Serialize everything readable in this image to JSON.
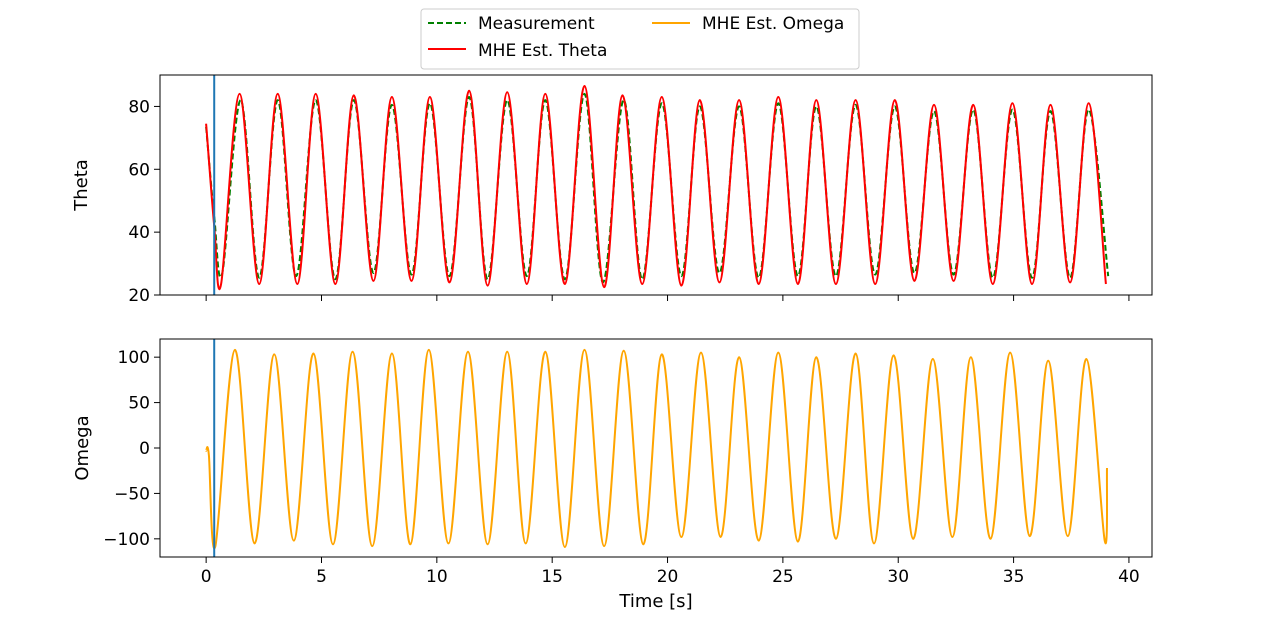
{
  "legend": {
    "placement": "top-center",
    "entries": [
      {
        "label": "Measurement",
        "color": "#008000",
        "style": "dashed"
      },
      {
        "label": "MHE Est. Theta",
        "color": "#ff0000",
        "style": "solid"
      },
      {
        "label": "MHE Est. Omega",
        "color": "#ffa500",
        "style": "solid"
      }
    ]
  },
  "chart_data": [
    {
      "type": "line",
      "title": "",
      "xlabel": "",
      "ylabel": "Theta",
      "xlim": [
        -2,
        41
      ],
      "ylim": [
        20,
        90
      ],
      "xticks": [
        0,
        5,
        10,
        15,
        20,
        25,
        30,
        35,
        40
      ],
      "yticks": [
        20,
        40,
        60,
        80
      ],
      "ytick_labels": [
        "20",
        "40",
        "60",
        "80"
      ],
      "show_xtick_labels": false,
      "grid": false,
      "vline": {
        "x": 0.35,
        "color": "#1f77b4"
      },
      "series": [
        {
          "name": "Measurement",
          "color": "#008000",
          "style": "dashed",
          "points": [
            [
              0.0,
              73.5
            ],
            [
              0.35,
              45
            ],
            [
              0.7,
              27
            ],
            [
              1.5,
              82
            ],
            [
              2.3,
              25.5
            ],
            [
              3.1,
              82
            ],
            [
              3.9,
              26
            ],
            [
              4.75,
              82
            ],
            [
              5.6,
              25
            ],
            [
              6.4,
              82
            ],
            [
              7.25,
              27
            ],
            [
              8.05,
              80.5
            ],
            [
              8.9,
              26.5
            ],
            [
              9.7,
              81
            ],
            [
              10.55,
              26
            ],
            [
              11.4,
              83
            ],
            [
              12.2,
              25
            ],
            [
              13.05,
              82
            ],
            [
              13.9,
              26
            ],
            [
              14.7,
              82
            ],
            [
              15.55,
              25
            ],
            [
              16.4,
              84
            ],
            [
              17.2,
              24
            ],
            [
              18.1,
              82
            ],
            [
              18.9,
              25
            ],
            [
              19.75,
              81
            ],
            [
              20.6,
              26
            ],
            [
              21.4,
              80
            ],
            [
              22.25,
              27
            ],
            [
              23.1,
              80
            ],
            [
              23.95,
              25.5
            ],
            [
              24.8,
              81
            ],
            [
              25.65,
              26
            ],
            [
              26.45,
              80
            ],
            [
              27.3,
              26
            ],
            [
              28.15,
              80.5
            ],
            [
              29.0,
              26.5
            ],
            [
              29.85,
              80
            ],
            [
              30.7,
              27
            ],
            [
              31.55,
              78.5
            ],
            [
              32.4,
              26.5
            ],
            [
              33.25,
              79
            ],
            [
              34.1,
              25.5
            ],
            [
              34.95,
              79
            ],
            [
              35.8,
              25.5
            ],
            [
              36.6,
              78.5
            ],
            [
              37.45,
              25.5
            ],
            [
              38.25,
              79
            ],
            [
              39.1,
              26
            ]
          ]
        },
        {
          "name": "MHE Est. Theta",
          "color": "#ff0000",
          "style": "solid",
          "points": [
            [
              0.0,
              74.5
            ],
            [
              0.35,
              42
            ],
            [
              0.65,
              23.5
            ],
            [
              1.45,
              84
            ],
            [
              2.3,
              23.5
            ],
            [
              3.1,
              84
            ],
            [
              3.95,
              23.5
            ],
            [
              4.75,
              84
            ],
            [
              5.6,
              23.5
            ],
            [
              6.4,
              83.5
            ],
            [
              7.25,
              24.5
            ],
            [
              8.05,
              83
            ],
            [
              8.9,
              24.5
            ],
            [
              9.7,
              83
            ],
            [
              10.55,
              24
            ],
            [
              11.4,
              85
            ],
            [
              12.2,
              23
            ],
            [
              13.05,
              84.5
            ],
            [
              13.9,
              23.5
            ],
            [
              14.7,
              84
            ],
            [
              15.55,
              23.5
            ],
            [
              16.4,
              86.5
            ],
            [
              17.25,
              22.5
            ],
            [
              18.05,
              83.5
            ],
            [
              18.9,
              23.5
            ],
            [
              19.75,
              83
            ],
            [
              20.6,
              23
            ],
            [
              21.4,
              82
            ],
            [
              22.25,
              24
            ],
            [
              23.1,
              82
            ],
            [
              23.95,
              23.5
            ],
            [
              24.8,
              83
            ],
            [
              25.65,
              23.5
            ],
            [
              26.45,
              82
            ],
            [
              27.3,
              23.5
            ],
            [
              28.15,
              82
            ],
            [
              29.0,
              23.5
            ],
            [
              29.85,
              82
            ],
            [
              30.7,
              24.5
            ],
            [
              31.55,
              80.5
            ],
            [
              32.4,
              24.5
            ],
            [
              33.25,
              80.5
            ],
            [
              34.1,
              23.5
            ],
            [
              34.95,
              81
            ],
            [
              35.8,
              23.5
            ],
            [
              36.6,
              80.5
            ],
            [
              37.45,
              24
            ],
            [
              38.25,
              81
            ],
            [
              39.0,
              23.5
            ]
          ]
        }
      ]
    },
    {
      "type": "line",
      "title": "",
      "xlabel": "Time [s]",
      "ylabel": "Omega",
      "xlim": [
        -2,
        41
      ],
      "ylim": [
        -120,
        120
      ],
      "xticks": [
        0,
        5,
        10,
        15,
        20,
        25,
        30,
        35,
        40
      ],
      "xtick_labels": [
        "0",
        "5",
        "10",
        "15",
        "20",
        "25",
        "30",
        "35",
        "40"
      ],
      "yticks": [
        -100,
        -50,
        0,
        50,
        100
      ],
      "ytick_labels": [
        "−100",
        "−50",
        "0",
        "50",
        "100"
      ],
      "grid": false,
      "vline": {
        "x": 0.35,
        "color": "#1f77b4"
      },
      "series": [
        {
          "name": "MHE Est. Omega",
          "color": "#ffa500",
          "style": "solid",
          "points": [
            [
              0.0,
              -3
            ],
            [
              0.12,
              -8
            ],
            [
              0.4,
              -108
            ],
            [
              1.25,
              108
            ],
            [
              2.1,
              -105
            ],
            [
              2.95,
              103
            ],
            [
              3.8,
              -102
            ],
            [
              4.65,
              104
            ],
            [
              5.5,
              -106
            ],
            [
              6.35,
              106
            ],
            [
              7.2,
              -108
            ],
            [
              8.05,
              104
            ],
            [
              8.85,
              -106
            ],
            [
              9.65,
              108
            ],
            [
              10.5,
              -105
            ],
            [
              11.35,
              106
            ],
            [
              12.2,
              -106
            ],
            [
              13.05,
              106
            ],
            [
              13.85,
              -105
            ],
            [
              14.7,
              106
            ],
            [
              15.55,
              -109
            ],
            [
              16.4,
              108
            ],
            [
              17.25,
              -108
            ],
            [
              18.1,
              107
            ],
            [
              18.95,
              -106
            ],
            [
              19.75,
              103
            ],
            [
              20.6,
              -98
            ],
            [
              21.45,
              105
            ],
            [
              22.3,
              -98
            ],
            [
              23.1,
              100
            ],
            [
              23.95,
              -102
            ],
            [
              24.8,
              105
            ],
            [
              25.65,
              -103
            ],
            [
              26.45,
              100
            ],
            [
              27.3,
              -100
            ],
            [
              28.15,
              104
            ],
            [
              28.95,
              -105
            ],
            [
              29.8,
              102
            ],
            [
              30.65,
              -100
            ],
            [
              31.5,
              98
            ],
            [
              32.35,
              -98
            ],
            [
              33.15,
              100
            ],
            [
              34.0,
              -100
            ],
            [
              34.85,
              105
            ],
            [
              35.7,
              -97
            ],
            [
              36.5,
              96
            ],
            [
              37.35,
              -97
            ],
            [
              38.15,
              98
            ],
            [
              38.95,
              -102
            ],
            [
              39.05,
              -22
            ]
          ]
        }
      ]
    }
  ]
}
